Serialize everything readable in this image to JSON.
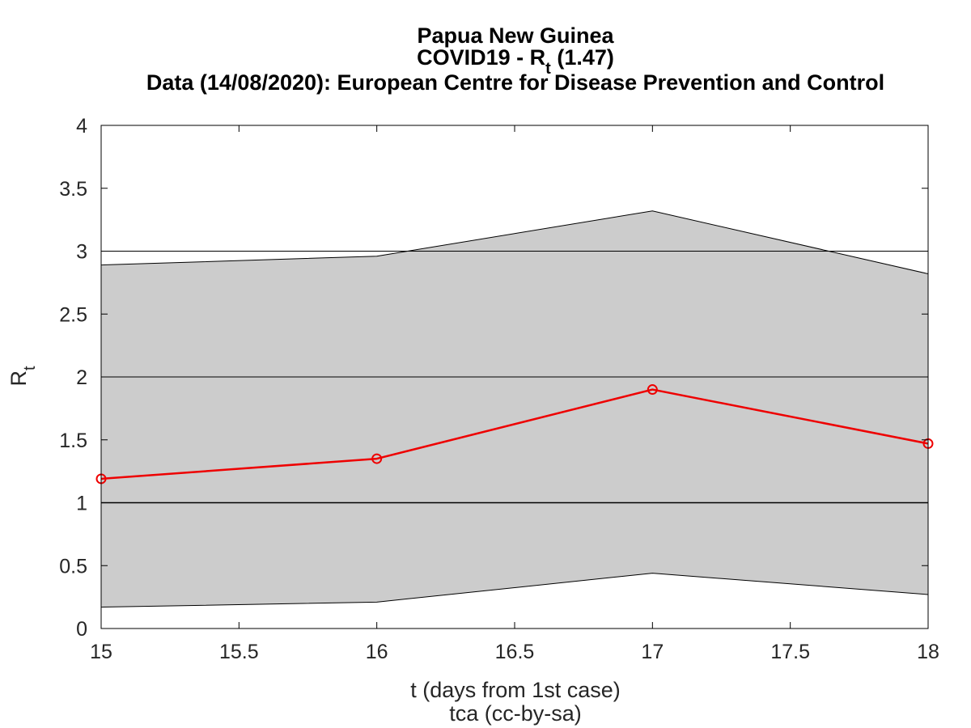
{
  "chart_data": {
    "type": "line",
    "title_lines": [
      "Papua New Guinea",
      "COVID19 - R",
      "Data (14/08/2020): European Centre for Disease Prevention and Control"
    ],
    "title_subscript": "t",
    "title_suffix": " (1.47)",
    "xlabel": "t (days from 1st case)",
    "ylabel": "R",
    "ylabel_subscript": "t",
    "credit": "tca (cc-by-sa)",
    "xlim": [
      15,
      18
    ],
    "ylim": [
      0,
      4
    ],
    "x_ticks": [
      15,
      15.5,
      16,
      16.5,
      17,
      17.5,
      18
    ],
    "x_tick_labels": [
      "15",
      "15.5",
      "16",
      "16.5",
      "17",
      "17.5",
      "18"
    ],
    "y_ticks": [
      0,
      0.5,
      1,
      1.5,
      2,
      2.5,
      3,
      3.5,
      4
    ],
    "y_tick_labels": [
      "0",
      "0.5",
      "1",
      "1.5",
      "2",
      "2.5",
      "3",
      "3.5",
      "4"
    ],
    "reference_lines": [
      1,
      2,
      3
    ],
    "x": [
      15,
      16,
      17,
      18
    ],
    "series": [
      {
        "values": [
          1.19,
          1.35,
          1.9,
          1.47
        ],
        "color": "#ee0000",
        "marker": "circle"
      }
    ],
    "band": {
      "upper": [
        2.89,
        2.96,
        3.32,
        2.82
      ],
      "lower": [
        0.17,
        0.21,
        0.44,
        0.27
      ],
      "color": "#cccccc"
    },
    "grid": false
  }
}
